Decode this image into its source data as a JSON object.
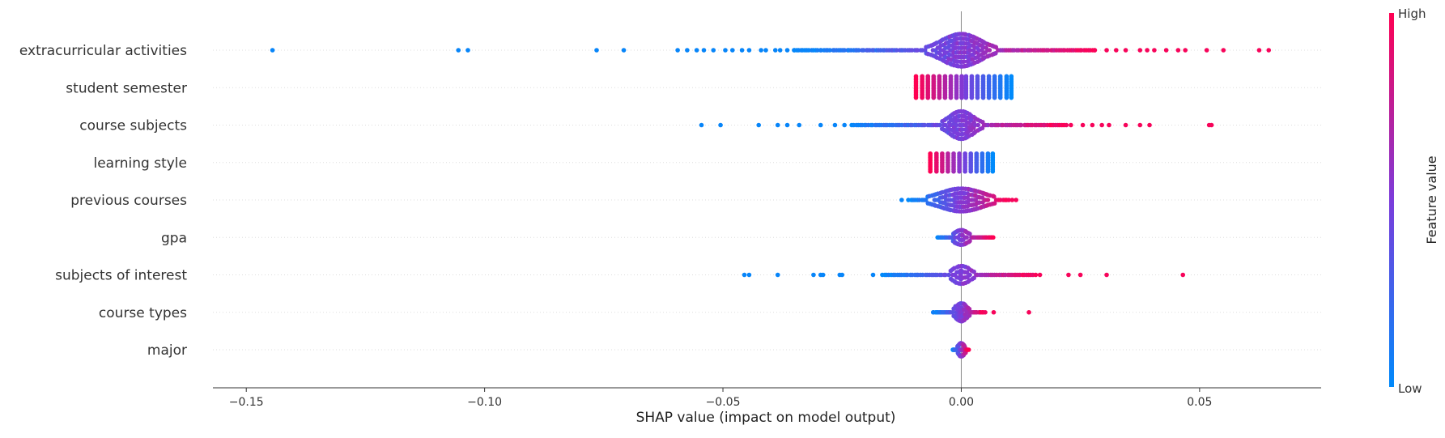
{
  "chart_data": {
    "type": "scatter",
    "subtype": "beeswarm",
    "xlabel": "SHAP value (impact on model output)",
    "xlim": [
      -0.157,
      0.0755
    ],
    "xticks": [
      -0.15,
      -0.1,
      -0.05,
      0.0,
      0.05
    ],
    "xtick_labels": [
      "−0.15",
      "−0.10",
      "−0.05",
      "0.00",
      "0.05"
    ],
    "features": [
      "extracurricular activities",
      "student semester",
      "course subjects",
      "learning style",
      "previous courses",
      "gpa",
      "subjects of interest",
      "course types",
      "major"
    ],
    "colorbar": {
      "label": "Feature value",
      "high_label": "High",
      "low_label": "Low",
      "low_color": "#008afb",
      "mid_color": "#7c3cdb",
      "high_color": "#ff0052"
    },
    "series": [
      {
        "feature": "extracurricular activities",
        "left_outliers": [
          -0.1445,
          -0.1055,
          -0.1035,
          -0.0765,
          -0.0708,
          -0.0595,
          -0.0575,
          -0.0555,
          -0.054,
          -0.052,
          -0.0495,
          -0.048,
          -0.046,
          -0.0445,
          -0.042,
          -0.041,
          -0.039,
          -0.038,
          -0.0365,
          -0.035
        ],
        "right_outliers": [
          0.028,
          0.0305,
          0.0325,
          0.0345,
          0.0375,
          0.039,
          0.0405,
          0.043,
          0.0455,
          0.047,
          0.0515,
          0.055,
          0.0625,
          0.0645
        ],
        "core_range": [
          -0.035,
          0.028
        ],
        "core_width": 0.004,
        "max_half_height": 20
      },
      {
        "feature": "student semester",
        "stripes": [
          -0.0095,
          -0.0082,
          -0.007,
          -0.0058,
          -0.0046,
          -0.0034,
          -0.0022,
          -0.001,
          0.0001,
          0.001,
          0.0022,
          0.0034,
          0.0046,
          0.0058,
          0.007,
          0.0082,
          0.0095,
          0.0105
        ],
        "stripe_half_height": 14
      },
      {
        "feature": "course subjects",
        "left_outliers": [
          -0.0545,
          -0.0505,
          -0.0425,
          -0.0385,
          -0.0365,
          -0.034,
          -0.0295,
          -0.0265,
          -0.0245
        ],
        "right_outliers": [
          0.023,
          0.0255,
          0.0275,
          0.0295,
          0.031,
          0.0345,
          0.0375,
          0.0395,
          0.052,
          0.0525
        ],
        "core_range": [
          -0.023,
          0.022
        ],
        "core_width": 0.0025,
        "max_half_height": 17
      },
      {
        "feature": "learning style",
        "stripes": [
          -0.0065,
          -0.0052,
          -0.004,
          -0.0028,
          -0.0016,
          -0.0004,
          0.0008,
          0.002,
          0.0032,
          0.0044,
          0.0056,
          0.0066
        ],
        "stripe_half_height": 11
      },
      {
        "feature": "previous courses",
        "left_outliers": [
          -0.0125
        ],
        "right_outliers": [
          0.0115
        ],
        "core_range": [
          -0.011,
          0.0105
        ],
        "core_width": 0.0045,
        "max_half_height": 14
      },
      {
        "feature": "gpa",
        "core_range": [
          -0.005,
          0.0068
        ],
        "core_width": 0.0015,
        "max_half_height": 9
      },
      {
        "feature": "subjects of interest",
        "left_outliers": [
          -0.0455,
          -0.0445,
          -0.0385,
          -0.031,
          -0.0295,
          -0.029,
          -0.0255,
          -0.025,
          -0.0185
        ],
        "right_outliers": [
          0.0165,
          0.0225,
          0.025,
          0.0305,
          0.0465
        ],
        "core_range": [
          -0.0165,
          0.0155
        ],
        "core_width": 0.0018,
        "max_half_height": 11
      },
      {
        "feature": "course types",
        "right_outliers": [
          0.0068,
          0.0142
        ],
        "core_range": [
          -0.006,
          0.005
        ],
        "core_width": 0.0012,
        "max_half_height": 11
      },
      {
        "feature": "major",
        "core_range": [
          -0.0018,
          0.0015
        ],
        "core_width": 0.0006,
        "max_half_height": 8
      }
    ]
  }
}
